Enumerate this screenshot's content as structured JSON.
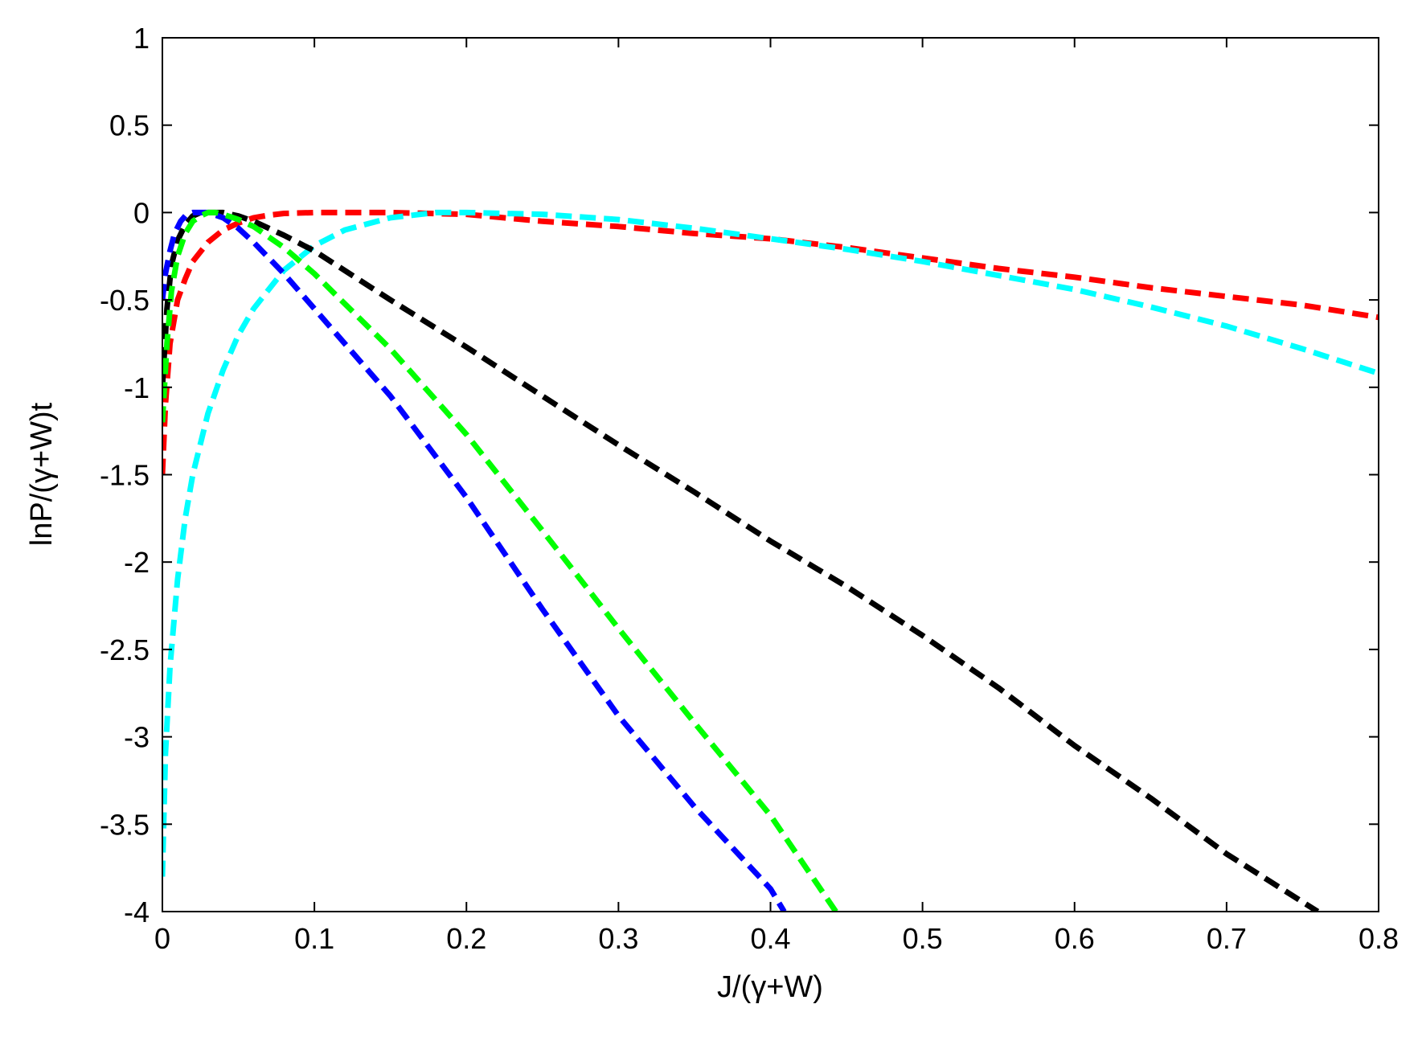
{
  "chart_data": {
    "type": "line",
    "title": "",
    "xlabel": "J/(γ+W)",
    "ylabel": "lnP/(γ+W)t",
    "xlim": [
      0,
      0.8
    ],
    "ylim": [
      -4,
      1
    ],
    "xticks": [
      0,
      0.1,
      0.2,
      0.3,
      0.4,
      0.5,
      0.6,
      0.7,
      0.8
    ],
    "xtick_labels": [
      "0",
      "0.1",
      "0.2",
      "0.3",
      "0.4",
      "0.5",
      "0.6",
      "0.7",
      "0.8"
    ],
    "yticks": [
      1,
      0.5,
      0,
      -0.5,
      -1,
      -1.5,
      -2,
      -2.5,
      -3,
      -3.5,
      -4
    ],
    "ytick_labels": [
      "1",
      "0.5",
      "0",
      "-0.5",
      "-1",
      "-1.5",
      "-2",
      "-2.5",
      "-3",
      "-3.5",
      "-4"
    ],
    "grid": false,
    "legend": "none",
    "series": [
      {
        "color": "#ff0000",
        "x": [
          0.0,
          0.002,
          0.005,
          0.01,
          0.015,
          0.02,
          0.03,
          0.04,
          0.05,
          0.06,
          0.07,
          0.08,
          0.1,
          0.15,
          0.2,
          0.25,
          0.3,
          0.35,
          0.4,
          0.45,
          0.5,
          0.55,
          0.6,
          0.65,
          0.7,
          0.75,
          0.8
        ],
        "y": [
          -1.5,
          -1.1,
          -0.75,
          -0.5,
          -0.38,
          -0.28,
          -0.17,
          -0.1,
          -0.06,
          -0.03,
          -0.015,
          -0.005,
          0.0,
          0.0,
          -0.01,
          -0.05,
          -0.08,
          -0.12,
          -0.15,
          -0.2,
          -0.26,
          -0.32,
          -0.37,
          -0.43,
          -0.48,
          -0.53,
          -0.6
        ]
      },
      {
        "color": "#00ffff",
        "x": [
          0.0,
          0.002,
          0.005,
          0.01,
          0.015,
          0.02,
          0.03,
          0.04,
          0.05,
          0.06,
          0.08,
          0.1,
          0.12,
          0.15,
          0.18,
          0.2,
          0.25,
          0.3,
          0.35,
          0.4,
          0.45,
          0.5,
          0.55,
          0.6,
          0.65,
          0.7,
          0.75,
          0.8
        ],
        "y": [
          -3.8,
          -3.1,
          -2.6,
          -2.1,
          -1.75,
          -1.5,
          -1.15,
          -0.9,
          -0.7,
          -0.55,
          -0.33,
          -0.19,
          -0.1,
          -0.03,
          0.0,
          0.0,
          -0.01,
          -0.04,
          -0.09,
          -0.15,
          -0.21,
          -0.28,
          -0.36,
          -0.44,
          -0.54,
          -0.65,
          -0.78,
          -0.92
        ]
      },
      {
        "color": "#000000",
        "x": [
          0.0,
          0.003,
          0.006,
          0.01,
          0.015,
          0.02,
          0.025,
          0.03,
          0.035,
          0.04,
          0.05,
          0.06,
          0.08,
          0.1,
          0.15,
          0.2,
          0.25,
          0.3,
          0.35,
          0.4,
          0.45,
          0.5,
          0.55,
          0.6,
          0.65,
          0.7,
          0.76
        ],
        "y": [
          -1.0,
          -0.55,
          -0.3,
          -0.16,
          -0.07,
          -0.02,
          0.0,
          0.0,
          0.0,
          0.0,
          -0.02,
          -0.05,
          -0.13,
          -0.22,
          -0.5,
          -0.77,
          -1.05,
          -1.33,
          -1.6,
          -1.88,
          -2.14,
          -2.42,
          -2.72,
          -3.05,
          -3.35,
          -3.67,
          -4.0
        ]
      },
      {
        "color": "#0000ff",
        "x": [
          0.0,
          0.002,
          0.005,
          0.008,
          0.012,
          0.016,
          0.02,
          0.025,
          0.03,
          0.04,
          0.05,
          0.06,
          0.08,
          0.1,
          0.15,
          0.2,
          0.25,
          0.3,
          0.35,
          0.4,
          0.409
        ],
        "y": [
          -0.5,
          -0.35,
          -0.22,
          -0.12,
          -0.05,
          -0.01,
          0.0,
          0.0,
          0.0,
          -0.03,
          -0.09,
          -0.17,
          -0.35,
          -0.55,
          -1.05,
          -1.63,
          -2.27,
          -2.88,
          -3.4,
          -3.87,
          -4.0
        ]
      },
      {
        "color": "#00ff00",
        "x": [
          0.0,
          0.003,
          0.006,
          0.01,
          0.015,
          0.02,
          0.025,
          0.03,
          0.035,
          0.04,
          0.05,
          0.06,
          0.08,
          0.1,
          0.15,
          0.2,
          0.25,
          0.3,
          0.35,
          0.4,
          0.443
        ],
        "y": [
          -1.2,
          -0.75,
          -0.45,
          -0.25,
          -0.12,
          -0.05,
          -0.02,
          0.0,
          0.0,
          -0.01,
          -0.04,
          -0.08,
          -0.2,
          -0.35,
          -0.78,
          -1.27,
          -1.82,
          -2.38,
          -2.92,
          -3.45,
          -4.0
        ]
      }
    ]
  }
}
